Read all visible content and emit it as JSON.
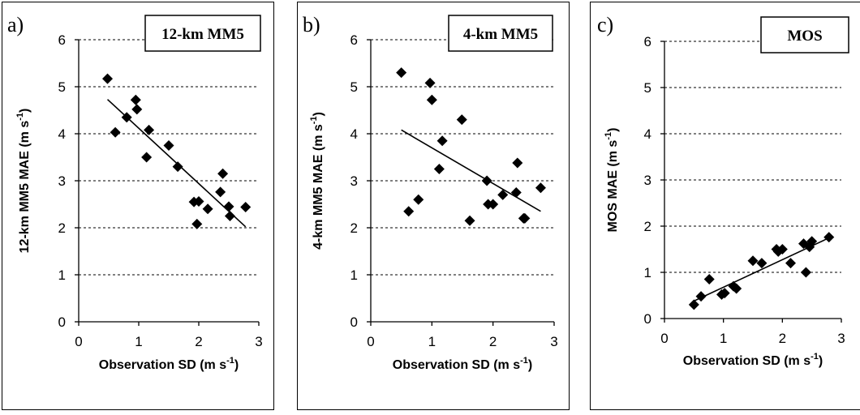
{
  "chart_data": [
    {
      "type": "scatter",
      "panel_label": "a)",
      "legend": "12-km MM5",
      "ylabel": "12-km MM5 MAE (m s⁻¹)",
      "xlabel": "Observation SD (m s⁻¹)",
      "xlim": [
        0,
        3
      ],
      "ylim": [
        0,
        6
      ],
      "xticks": [
        "0",
        "1",
        "2",
        "3"
      ],
      "yticks": [
        "0",
        "1",
        "2",
        "3",
        "4",
        "5",
        "6"
      ],
      "grid": "horizontal dashed",
      "x": [
        0.48,
        0.61,
        0.8,
        0.95,
        0.97,
        1.13,
        1.17,
        1.5,
        1.65,
        1.92,
        1.97,
        2.0,
        2.15,
        2.36,
        2.4,
        2.5,
        2.52,
        2.78
      ],
      "y": [
        5.17,
        4.03,
        4.35,
        4.72,
        4.52,
        3.5,
        4.08,
        3.75,
        3.3,
        2.55,
        2.08,
        2.56,
        2.4,
        2.76,
        3.15,
        2.45,
        2.25,
        2.44
      ],
      "trendline": {
        "x": [
          0.48,
          2.78
        ],
        "y": [
          4.73,
          2.02
        ]
      }
    },
    {
      "type": "scatter",
      "panel_label": "b)",
      "legend": "4-km MM5",
      "ylabel": "4-km MM5 MAE (m s⁻¹)",
      "xlabel": "Observation SD (m s⁻¹)",
      "xlim": [
        0,
        3
      ],
      "ylim": [
        0,
        6
      ],
      "xticks": [
        "0",
        "1",
        "2",
        "3"
      ],
      "yticks": [
        "0",
        "1",
        "2",
        "3",
        "4",
        "5",
        "6"
      ],
      "grid": "horizontal dashed",
      "x": [
        0.5,
        0.62,
        0.78,
        0.97,
        1.0,
        1.12,
        1.17,
        1.49,
        1.62,
        1.9,
        1.92,
        2.0,
        2.16,
        2.38,
        2.4,
        2.5,
        2.52,
        2.78
      ],
      "y": [
        5.3,
        2.35,
        2.6,
        5.08,
        4.72,
        3.25,
        3.85,
        4.3,
        2.15,
        3.0,
        2.5,
        2.5,
        2.7,
        2.75,
        3.38,
        2.2,
        2.2,
        2.85
      ],
      "trendline": {
        "x": [
          0.5,
          2.78
        ],
        "y": [
          4.08,
          2.35
        ]
      }
    },
    {
      "type": "scatter",
      "panel_label": "c)",
      "legend": "MOS",
      "ylabel": "MOS MAE (m s⁻¹)",
      "xlabel": "Observation SD (m s⁻¹)",
      "xlim": [
        0,
        3
      ],
      "ylim": [
        0,
        6
      ],
      "xticks": [
        "0",
        "1",
        "2",
        "3"
      ],
      "yticks": [
        "0",
        "1",
        "2",
        "3",
        "4",
        "5",
        "6"
      ],
      "grid": "horizontal dashed",
      "x": [
        0.5,
        0.62,
        0.76,
        0.97,
        1.02,
        1.17,
        1.22,
        1.5,
        1.65,
        1.9,
        1.93,
        2.0,
        2.14,
        2.36,
        2.4,
        2.46,
        2.5,
        2.79
      ],
      "y": [
        0.3,
        0.48,
        0.85,
        0.52,
        0.55,
        0.7,
        0.65,
        1.25,
        1.2,
        1.5,
        1.45,
        1.5,
        1.2,
        1.62,
        1.0,
        1.55,
        1.67,
        1.76
      ],
      "trendline": {
        "x": [
          0.5,
          2.78
        ],
        "y": [
          0.38,
          1.74
        ]
      }
    }
  ]
}
